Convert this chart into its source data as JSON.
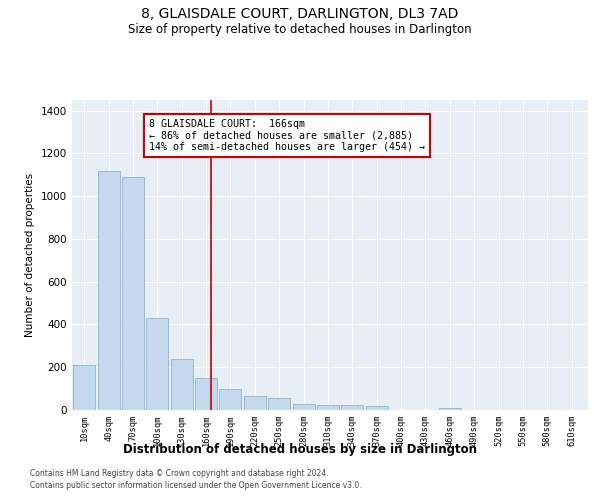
{
  "title": "8, GLAISDALE COURT, DARLINGTON, DL3 7AD",
  "subtitle": "Size of property relative to detached houses in Darlington",
  "xlabel": "Distribution of detached houses by size in Darlington",
  "ylabel": "Number of detached properties",
  "footer1": "Contains HM Land Registry data © Crown copyright and database right 2024.",
  "footer2": "Contains public sector information licensed under the Open Government Licence v3.0.",
  "annotation_line1": "8 GLAISDALE COURT:  166sqm",
  "annotation_line2": "← 86% of detached houses are smaller (2,885)",
  "annotation_line3": "14% of semi-detached houses are larger (454) →",
  "property_size": 166,
  "bar_color": "#c5d8ed",
  "bar_edge_color": "#8ab4d4",
  "vline_color": "#cc0000",
  "background_color": "#e8eef5",
  "categories": [
    10,
    40,
    70,
    100,
    130,
    160,
    190,
    220,
    250,
    280,
    310,
    340,
    370,
    400,
    430,
    460,
    490,
    520,
    550,
    580,
    610
  ],
  "tick_labels": [
    "10sqm",
    "40sqm",
    "70sqm",
    "100sqm",
    "130sqm",
    "160sqm",
    "190sqm",
    "220sqm",
    "250sqm",
    "280sqm",
    "310sqm",
    "340sqm",
    "370sqm",
    "400sqm",
    "430sqm",
    "460sqm",
    "490sqm",
    "520sqm",
    "550sqm",
    "580sqm",
    "610sqm"
  ],
  "values": [
    210,
    1120,
    1090,
    430,
    240,
    150,
    100,
    65,
    55,
    30,
    25,
    25,
    18,
    0,
    0,
    10,
    0,
    0,
    0,
    0,
    0
  ],
  "ylim": [
    0,
    1450
  ],
  "yticks": [
    0,
    200,
    400,
    600,
    800,
    1000,
    1200,
    1400
  ]
}
